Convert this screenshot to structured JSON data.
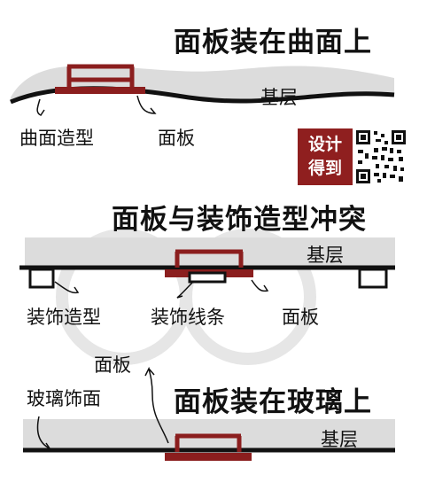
{
  "panels": [
    {
      "title": "面板装在曲面上",
      "labels": {
        "base": "基层",
        "curve": "曲面造型",
        "panel": "面板"
      }
    },
    {
      "title": "面板与装饰造型冲突",
      "labels": {
        "base": "基层",
        "molding": "装饰造型",
        "trim": "装饰线条",
        "panel": "面板"
      }
    },
    {
      "title": "面板装在玻璃上",
      "labels": {
        "panel": "面板",
        "glass": "玻璃饰面",
        "base": "基层"
      }
    }
  ],
  "badge": {
    "line1": "设计",
    "line2": "得到"
  },
  "colors": {
    "panel": "#8b1e1e",
    "base": "#dcdcdc",
    "line": "#111111",
    "badge": "#8f1f1f"
  }
}
